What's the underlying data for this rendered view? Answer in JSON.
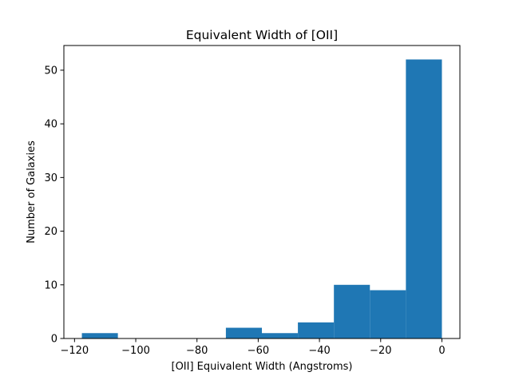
{
  "chart_data": {
    "type": "bar",
    "title": "Equivalent Width of [OII]",
    "xlabel": "[OII] Equivalent Width (Angstroms)",
    "ylabel": "Number of Galaxies",
    "bins": [
      {
        "x0": -117.6,
        "x1": -105.84,
        "count": 1
      },
      {
        "x0": -105.84,
        "x1": -94.08,
        "count": 0
      },
      {
        "x0": -94.08,
        "x1": -82.32,
        "count": 0
      },
      {
        "x0": -82.32,
        "x1": -70.56,
        "count": 0
      },
      {
        "x0": -70.56,
        "x1": -58.8,
        "count": 2
      },
      {
        "x0": -58.8,
        "x1": -47.04,
        "count": 1
      },
      {
        "x0": -47.04,
        "x1": -35.28,
        "count": 3
      },
      {
        "x0": -35.28,
        "x1": -23.52,
        "count": 10
      },
      {
        "x0": -23.52,
        "x1": -11.76,
        "count": 9
      },
      {
        "x0": -11.76,
        "x1": 0.0,
        "count": 52
      }
    ],
    "xlim": [
      -123.48,
      5.88
    ],
    "ylim": [
      0,
      54.6
    ],
    "xticks": [
      -120,
      -100,
      -80,
      -60,
      -40,
      -20,
      0
    ],
    "xtick_labels": [
      "−120",
      "−100",
      "−80",
      "−60",
      "−40",
      "−20",
      "0"
    ],
    "yticks": [
      0,
      10,
      20,
      30,
      40,
      50
    ],
    "ytick_labels": [
      "0",
      "10",
      "20",
      "30",
      "40",
      "50"
    ],
    "grid": false,
    "bar_color": "#1f77b4"
  }
}
